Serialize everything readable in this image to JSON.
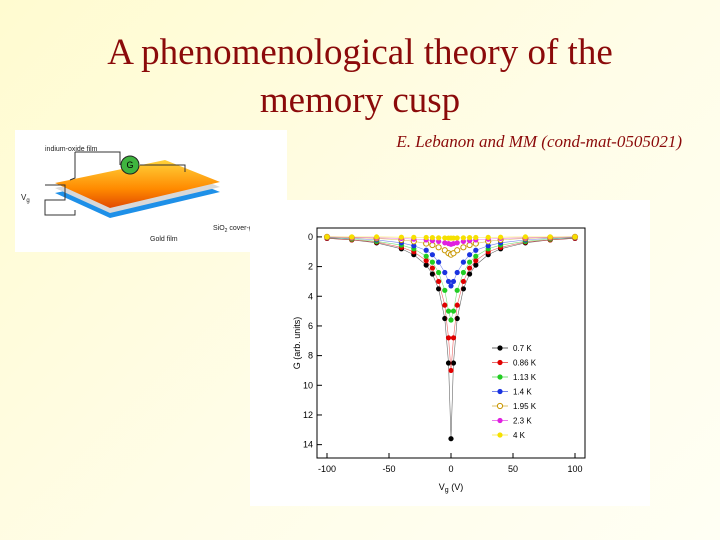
{
  "title": [
    "A phenomenological theory of the",
    "memory cusp"
  ],
  "subtitle": "E. Lebanon and MM (cond-mat-0505021)",
  "device": {
    "film_label": "indium-oxide film",
    "meter_label": "G",
    "gate_label": [
      "V",
      "g"
    ],
    "glass_label": [
      "SiO",
      "2",
      " cover-glass"
    ],
    "gold_label": "Gold film"
  },
  "chart_data": {
    "type": "scatter",
    "y_label": "G (arb. units)",
    "x_label": [
      "V",
      "g",
      " (V)"
    ],
    "x": [
      -100,
      -80,
      -60,
      -40,
      -30,
      -20,
      -15,
      -10,
      -5,
      -2,
      0,
      2,
      5,
      10,
      15,
      20,
      30,
      40,
      60,
      80,
      100
    ],
    "xlim": [
      -100,
      100
    ],
    "xticks": [
      -100,
      -50,
      0,
      50,
      100
    ],
    "ylim": [
      -0.6,
      14.9
    ],
    "yticks": [
      0,
      2,
      4,
      6,
      8,
      10,
      12,
      14
    ],
    "y_inverted": true,
    "series": [
      {
        "name": "0.7 K",
        "color": "#000000",
        "values": [
          0.1,
          0.2,
          0.4,
          0.8,
          1.2,
          1.9,
          2.5,
          3.5,
          5.5,
          8.5,
          13.6,
          8.5,
          5.5,
          3.5,
          2.5,
          1.9,
          1.2,
          0.8,
          0.4,
          0.2,
          0.1
        ]
      },
      {
        "name": "0.86 K",
        "color": "#e00000",
        "values": [
          0.1,
          0.2,
          0.35,
          0.7,
          1.0,
          1.6,
          2.1,
          3.0,
          4.6,
          6.8,
          9.0,
          6.8,
          4.6,
          3.0,
          2.1,
          1.6,
          1.0,
          0.7,
          0.35,
          0.2,
          0.1
        ]
      },
      {
        "name": "1.13 K",
        "color": "#22cc22",
        "values": [
          0.05,
          0.15,
          0.3,
          0.55,
          0.8,
          1.3,
          1.7,
          2.4,
          3.6,
          5.0,
          5.6,
          5.0,
          3.6,
          2.4,
          1.7,
          1.3,
          0.8,
          0.55,
          0.3,
          0.15,
          0.05
        ]
      },
      {
        "name": "1.4 K",
        "color": "#1a33e0",
        "values": [
          0.05,
          0.1,
          0.2,
          0.4,
          0.6,
          0.9,
          1.2,
          1.7,
          2.4,
          3.0,
          3.3,
          3.0,
          2.4,
          1.7,
          1.2,
          0.9,
          0.6,
          0.4,
          0.2,
          0.1,
          0.05
        ]
      },
      {
        "name": "1.95 K",
        "color": "#c89600",
        "hollow": true,
        "values": [
          0,
          0.05,
          0.1,
          0.2,
          0.3,
          0.45,
          0.55,
          0.7,
          0.9,
          1.1,
          1.2,
          1.1,
          0.9,
          0.7,
          0.55,
          0.45,
          0.3,
          0.2,
          0.1,
          0.05,
          0
        ]
      },
      {
        "name": "2.3 K",
        "color": "#e020e0",
        "values": [
          0,
          0.03,
          0.06,
          0.1,
          0.15,
          0.2,
          0.25,
          0.3,
          0.4,
          0.45,
          0.5,
          0.45,
          0.4,
          0.3,
          0.25,
          0.2,
          0.15,
          0.1,
          0.06,
          0.03,
          0
        ]
      },
      {
        "name": "4 K",
        "color": "#f5e000",
        "values": [
          0,
          0,
          0,
          0.02,
          0.03,
          0.04,
          0.05,
          0.06,
          0.07,
          0.08,
          0.08,
          0.08,
          0.07,
          0.06,
          0.05,
          0.04,
          0.03,
          0.02,
          0,
          0,
          0
        ]
      }
    ]
  }
}
